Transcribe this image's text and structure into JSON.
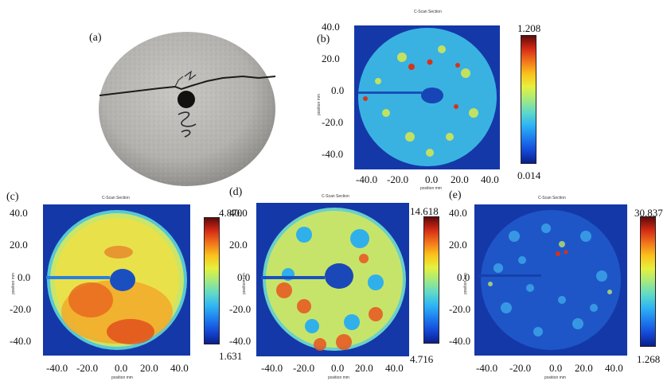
{
  "panels": {
    "a": {
      "label": "(a)"
    },
    "b": {
      "label": "(b)",
      "title": "C-Scan Section",
      "ylabel": "position mm",
      "xlabel": "position mm",
      "yticks": [
        "40.0",
        "20.0",
        "0.0",
        "-20.0",
        "-40.0"
      ],
      "xticks": [
        "-40.0",
        "-20.0",
        "0.0",
        "20.0",
        "40.0"
      ],
      "cbar_max": "1.208",
      "cbar_min": "0.014"
    },
    "c": {
      "label": "(c)",
      "title": "C-Scan Section",
      "ylabel": "position mm",
      "xlabel": "position mm",
      "yticks": [
        "40.0",
        "20.0",
        "0.0",
        "-20.0",
        "-40.0"
      ],
      "xticks": [
        "-40.0",
        "-20.0",
        "0.0",
        "20.0",
        "40.0"
      ],
      "cbar_max": "4.870",
      "cbar_min": "1.631"
    },
    "d": {
      "label": "(d)",
      "title": "C-Scan Section",
      "ylabel": "position mm",
      "xlabel": "position mm",
      "yticks": [
        "40.0",
        "20.0",
        "0.0",
        "-20.0",
        "-40.0"
      ],
      "xticks": [
        "-40.0",
        "-20.0",
        "0.0",
        "20.0",
        "40.0"
      ],
      "cbar_max": "14.618",
      "cbar_min": "4.716"
    },
    "e": {
      "label": "(e)",
      "title": "C-Scan Section",
      "ylabel": "position mm",
      "xlabel": "position mm",
      "yticks": [
        "40.0",
        "20.0",
        "0.0",
        "-20.0",
        "-40.0"
      ],
      "xticks": [
        "-40.0",
        "-20.0",
        "0.0",
        "20.0",
        "40.0"
      ],
      "cbar_max": "30.837",
      "cbar_min": "1.268"
    }
  },
  "colors": {
    "background": "#1538a8",
    "colormap": [
      "#0a1f8a",
      "#1549d8",
      "#1e7fef",
      "#2fb6f4",
      "#60d9c8",
      "#a3ea7f",
      "#e6f03e",
      "#fbc21c",
      "#f2741b",
      "#d22a15",
      "#5e0a0a"
    ],
    "concrete": "#b9b8b5"
  }
}
